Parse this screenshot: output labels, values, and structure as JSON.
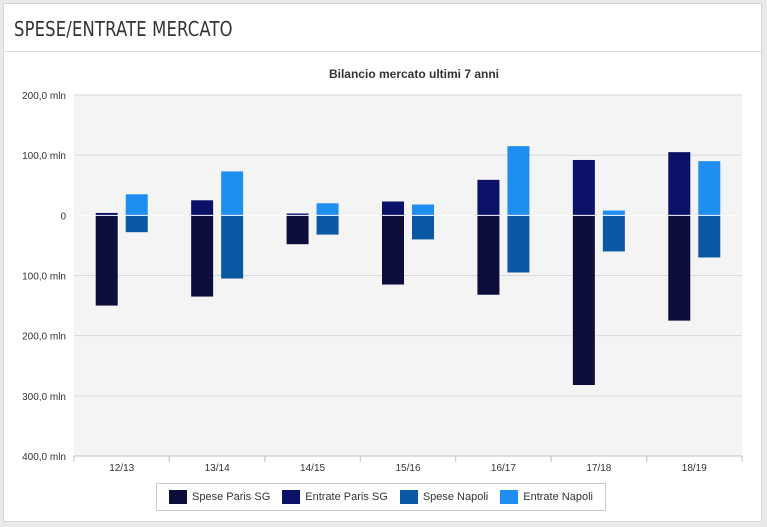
{
  "header": {
    "title": "SPESE/ENTRATE MERCATO"
  },
  "chart_data": {
    "type": "bar",
    "title": "Bilancio mercato ultimi 7 anni",
    "categories": [
      "12/13",
      "13/14",
      "14/15",
      "15/16",
      "16/17",
      "17/18",
      "18/19"
    ],
    "series": [
      {
        "name": "Spese Paris SG",
        "color": "#0d0d3b",
        "values": [
          -150,
          -135,
          -48,
          -115,
          -132,
          -282,
          -175
        ]
      },
      {
        "name": "Entrate Paris SG",
        "color": "#0a1166",
        "values": [
          4,
          25,
          3,
          23,
          59,
          92,
          105
        ]
      },
      {
        "name": "Spese Napoli",
        "color": "#0a57a3",
        "values": [
          -28,
          -105,
          -32,
          -40,
          -95,
          -60,
          -70
        ]
      },
      {
        "name": "Entrate Napoli",
        "color": "#1f8ef1",
        "values": [
          35,
          73,
          20,
          18,
          115,
          8,
          90
        ]
      }
    ],
    "ylim": [
      -400,
      200
    ],
    "yticks": [
      {
        "value": 200,
        "label": "200,0 mln"
      },
      {
        "value": 100,
        "label": "100,0 mln"
      },
      {
        "value": 0,
        "label": "0"
      },
      {
        "value": -100,
        "label": "100,0 mln"
      },
      {
        "value": -200,
        "label": "200,0 mln"
      },
      {
        "value": -300,
        "label": "300,0 mln"
      },
      {
        "value": -400,
        "label": "400,0 mln"
      }
    ],
    "grid": true,
    "legend": "bottom"
  }
}
